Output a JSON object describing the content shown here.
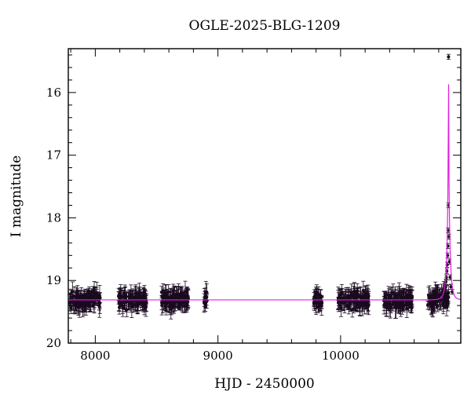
{
  "chart_data": {
    "type": "scatter",
    "title": "OGLE-2025-BLG-1209",
    "xlabel": "HJD - 2450000",
    "ylabel": "I magnitude",
    "xlim": [
      7780,
      10980
    ],
    "ylim": [
      20,
      15.3
    ],
    "y_inverted": true,
    "xticks": [
      8000,
      9000,
      10000
    ],
    "xtick_labels": [
      "8000",
      "9000",
      "10000"
    ],
    "yticks": [
      16,
      17,
      18,
      19,
      20
    ],
    "ytick_labels": [
      "16",
      "17",
      "18",
      "19",
      "20"
    ],
    "grid": false,
    "legend": "none",
    "colors": {
      "points": "#1a0a1f",
      "model": "#e020e0",
      "axes": "#000000"
    },
    "baseline_mag": 19.31,
    "model": {
      "name": "",
      "t0": 10880,
      "baseline": 19.31,
      "peak_mag": 15.4
    },
    "season_ranges": [
      [
        7790,
        8040
      ],
      [
        8190,
        8420
      ],
      [
        8540,
        8760
      ],
      [
        8880,
        8910
      ],
      [
        9780,
        9850
      ],
      [
        9980,
        10230
      ],
      [
        10350,
        10590
      ],
      [
        10710,
        10880
      ]
    ],
    "observations": [
      {
        "x": 10880,
        "y": 15.43
      },
      {
        "x": 10878,
        "y": 17.8
      },
      {
        "x": 10876,
        "y": 18.2
      },
      {
        "x": 10874,
        "y": 18.45
      },
      {
        "x": 10872,
        "y": 18.6
      },
      {
        "x": 10869,
        "y": 18.75
      },
      {
        "x": 10866,
        "y": 18.85
      },
      {
        "x": 10862,
        "y": 18.95
      },
      {
        "x": 10858,
        "y": 19.02
      },
      {
        "x": 10884,
        "y": 18.3
      },
      {
        "x": 10888,
        "y": 18.7
      },
      {
        "x": 10893,
        "y": 18.95
      },
      {
        "x": 10900,
        "y": 19.1
      },
      {
        "x": 10910,
        "y": 19.18
      },
      {
        "x": 10850,
        "y": 19.08
      },
      {
        "x": 10840,
        "y": 19.14
      },
      {
        "x": 10830,
        "y": 19.18
      }
    ],
    "scatter_mag_range": [
      19.1,
      19.55
    ]
  }
}
